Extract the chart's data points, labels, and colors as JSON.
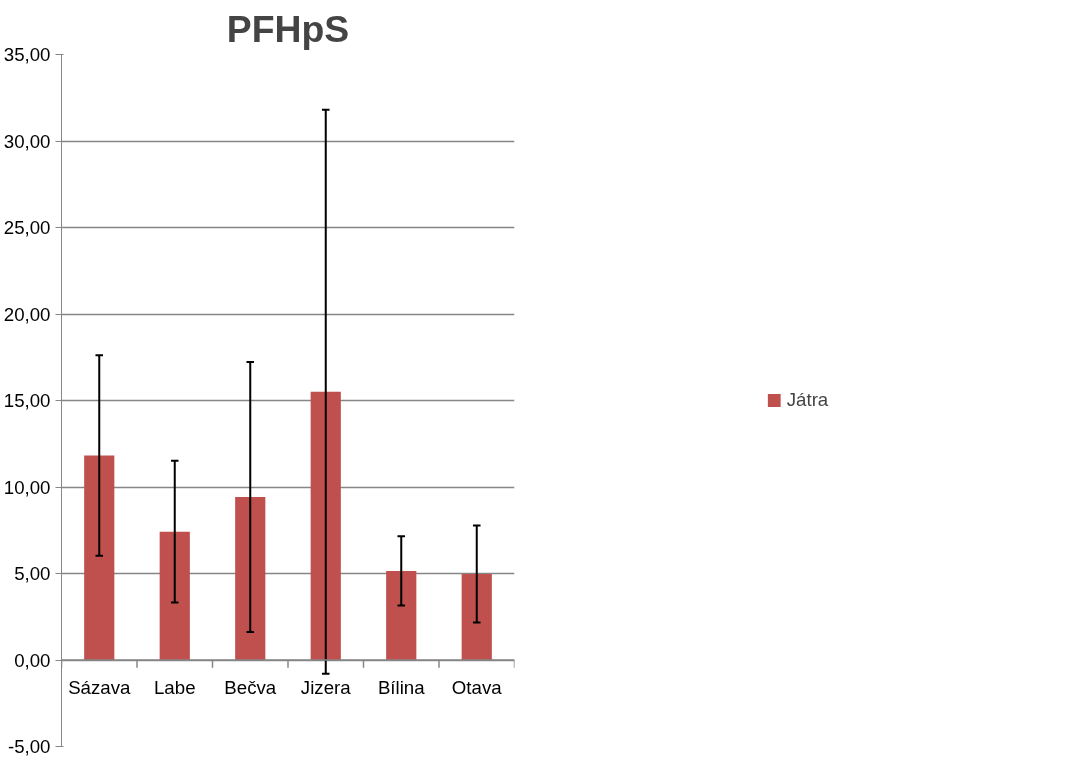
{
  "chart_data": {
    "type": "bar",
    "title": "PFHpS",
    "categories": [
      "Sázava",
      "Labe",
      "Bečva",
      "Jizera",
      "Bílina",
      "Otava"
    ],
    "series": [
      {
        "name": "Játra",
        "color": "#c0504d",
        "values": [
          11.82,
          7.42,
          9.42,
          15.51,
          5.15,
          4.97
        ],
        "errors": [
          5.8,
          4.1,
          7.8,
          16.3,
          2.0,
          2.8
        ]
      }
    ],
    "ylim": [
      -5,
      35
    ],
    "yticks": [
      {
        "value": -5,
        "label": "-5,00"
      },
      {
        "value": 0,
        "label": "0,00"
      },
      {
        "value": 5,
        "label": "5,00"
      },
      {
        "value": 10,
        "label": "10,00"
      },
      {
        "value": 15,
        "label": "15,00"
      },
      {
        "value": 20,
        "label": "20,00"
      },
      {
        "value": 25,
        "label": "25,00"
      },
      {
        "value": 30,
        "label": "30,00"
      },
      {
        "value": 35,
        "label": "35,00"
      }
    ],
    "grid": "y",
    "legend": "right"
  }
}
